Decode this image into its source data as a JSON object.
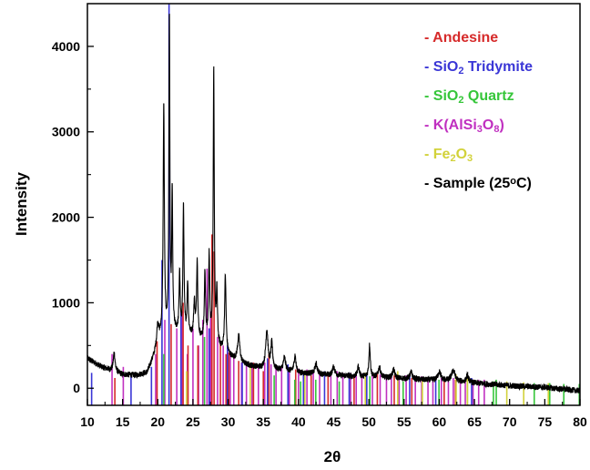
{
  "chart_data": {
    "type": "line",
    "title": "",
    "xlabel": "2θ",
    "ylabel": "Intensity",
    "xlim": [
      10,
      80
    ],
    "ylim": [
      -200,
      4500
    ],
    "x_ticks": [
      "10",
      "15",
      "20",
      "25",
      "30",
      "35",
      "40",
      "45",
      "50",
      "55",
      "60",
      "65",
      "70",
      "75",
      "80"
    ],
    "y_ticks": [
      "0",
      "1000",
      "2000",
      "3000",
      "4000"
    ],
    "grid": false,
    "legend_position": "top-right",
    "legend": [
      {
        "key": "andesine",
        "color": "#d62a2a",
        "parts": [
          {
            "t": "- Andesine",
            "s": "n"
          }
        ]
      },
      {
        "key": "tridymite",
        "color": "#3a36d6",
        "parts": [
          {
            "t": "- SiO",
            "s": "n"
          },
          {
            "t": "2",
            "s": "sub"
          },
          {
            "t": " Tridymite",
            "s": "n"
          }
        ]
      },
      {
        "key": "quartz",
        "color": "#36c63a",
        "parts": [
          {
            "t": "- SiO",
            "s": "n"
          },
          {
            "t": "2",
            "s": "sub"
          },
          {
            "t": " Quartz",
            "s": "n"
          }
        ]
      },
      {
        "key": "kalsi",
        "color": "#c030c0",
        "parts": [
          {
            "t": "- K(AlSi",
            "s": "n"
          },
          {
            "t": "3",
            "s": "sub"
          },
          {
            "t": "O",
            "s": "n"
          },
          {
            "t": "8",
            "s": "sub"
          },
          {
            "t": ")",
            "s": "n"
          }
        ]
      },
      {
        "key": "fe2o3",
        "color": "#d2d23a",
        "parts": [
          {
            "t": "- Fe",
            "s": "n"
          },
          {
            "t": "2",
            "s": "sub"
          },
          {
            "t": "O",
            "s": "n"
          },
          {
            "t": "3",
            "s": "sub"
          }
        ]
      },
      {
        "key": "sample",
        "color": "#000000",
        "parts": [
          {
            "t": "- Sample (25",
            "s": "n"
          },
          {
            "t": "o",
            "s": "sup"
          },
          {
            "t": "C)",
            "s": "n"
          }
        ]
      }
    ],
    "sample_series": {
      "name": "Sample (25°C)",
      "color": "#000000",
      "baseline": [
        [
          10,
          350
        ],
        [
          12,
          250
        ],
        [
          15,
          160
        ],
        [
          17,
          150
        ],
        [
          18.5,
          180
        ],
        [
          19.5,
          380
        ],
        [
          20.5,
          580
        ],
        [
          22,
          650
        ],
        [
          24,
          620
        ],
        [
          26,
          560
        ],
        [
          28,
          500
        ],
        [
          30,
          380
        ],
        [
          32,
          280
        ],
        [
          35,
          230
        ],
        [
          40,
          180
        ],
        [
          45,
          150
        ],
        [
          50,
          130
        ],
        [
          55,
          110
        ],
        [
          60,
          90
        ],
        [
          65,
          60
        ],
        [
          70,
          30
        ],
        [
          75,
          10
        ],
        [
          80,
          -30
        ]
      ],
      "peaks": [
        [
          13.8,
          220,
          0.15
        ],
        [
          20.0,
          250,
          0.18
        ],
        [
          20.85,
          2700,
          0.1
        ],
        [
          21.65,
          3700,
          0.08
        ],
        [
          22.05,
          1600,
          0.08
        ],
        [
          23.1,
          700,
          0.09
        ],
        [
          23.65,
          1500,
          0.09
        ],
        [
          24.25,
          600,
          0.1
        ],
        [
          25.2,
          400,
          0.12
        ],
        [
          25.6,
          900,
          0.1
        ],
        [
          26.7,
          800,
          0.1
        ],
        [
          27.3,
          1000,
          0.1
        ],
        [
          27.95,
          3200,
          0.09
        ],
        [
          28.4,
          600,
          0.1
        ],
        [
          29.6,
          900,
          0.12
        ],
        [
          31.5,
          300,
          0.2
        ],
        [
          35.5,
          450,
          0.2
        ],
        [
          36.2,
          300,
          0.15
        ],
        [
          38.0,
          150,
          0.2
        ],
        [
          39.5,
          200,
          0.15
        ],
        [
          42.5,
          120,
          0.2
        ],
        [
          45.0,
          100,
          0.2
        ],
        [
          48.5,
          120,
          0.15
        ],
        [
          50.1,
          380,
          0.12
        ],
        [
          51.5,
          120,
          0.2
        ],
        [
          53.5,
          100,
          0.2
        ],
        [
          56.0,
          80,
          0.2
        ],
        [
          60.0,
          100,
          0.25
        ],
        [
          62.0,
          130,
          0.3
        ],
        [
          64.0,
          80,
          0.2
        ]
      ],
      "noise": 35
    },
    "reference_series": {
      "andesine": {
        "color": "#d62a2a",
        "lines": [
          [
            13.9,
            120
          ],
          [
            19.9,
            550
          ],
          [
            21.9,
            750
          ],
          [
            23.6,
            1000
          ],
          [
            24.3,
            500
          ],
          [
            25.7,
            500
          ],
          [
            27.7,
            1800
          ],
          [
            28.0,
            1600
          ],
          [
            28.9,
            550
          ],
          [
            29.7,
            400
          ],
          [
            30.1,
            420
          ],
          [
            31.5,
            320
          ],
          [
            33.6,
            300
          ],
          [
            35.0,
            200
          ],
          [
            35.8,
            400
          ],
          [
            39.6,
            220
          ],
          [
            41.8,
            150
          ],
          [
            44.2,
            150
          ],
          [
            47.9,
            150
          ],
          [
            49.5,
            150
          ],
          [
            51.2,
            180
          ],
          [
            53.6,
            150
          ],
          [
            56.1,
            120
          ],
          [
            60.7,
            100
          ],
          [
            62.3,
            100
          ]
        ]
      },
      "tridymite": {
        "color": "#3a36d6",
        "lines": [
          [
            10.6,
            180
          ],
          [
            16.2,
            150
          ],
          [
            19.1,
            250
          ],
          [
            20.6,
            1500
          ],
          [
            21.6,
            4550
          ],
          [
            23.3,
            900
          ],
          [
            27.3,
            700
          ],
          [
            29.9,
            500
          ],
          [
            32.0,
            300
          ],
          [
            35.6,
            350
          ],
          [
            38.5,
            280
          ],
          [
            40.7,
            200
          ],
          [
            43.7,
            200
          ],
          [
            47.2,
            180
          ],
          [
            49.7,
            180
          ],
          [
            55.8,
            150
          ],
          [
            59.5,
            140
          ],
          [
            64.6,
            120
          ]
        ]
      },
      "quartz": {
        "color": "#36c63a",
        "lines": [
          [
            20.86,
            400
          ],
          [
            26.64,
            600
          ],
          [
            36.54,
            150
          ],
          [
            39.47,
            100
          ],
          [
            40.3,
            80
          ],
          [
            42.45,
            100
          ],
          [
            45.79,
            80
          ],
          [
            50.14,
            140
          ],
          [
            54.87,
            80
          ],
          [
            59.96,
            100
          ],
          [
            64.0,
            80
          ],
          [
            67.7,
            80
          ],
          [
            68.1,
            100
          ],
          [
            73.5,
            60
          ],
          [
            75.7,
            60
          ],
          [
            77.7,
            50
          ],
          [
            79.9,
            50
          ]
        ]
      },
      "kalsi": {
        "color": "#c030c0",
        "lines": [
          [
            13.5,
            400
          ],
          [
            15.1,
            250
          ],
          [
            19.7,
            400
          ],
          [
            21.0,
            800
          ],
          [
            22.7,
            700
          ],
          [
            23.5,
            900
          ],
          [
            24.2,
            400
          ],
          [
            25.0,
            700
          ],
          [
            25.8,
            500
          ],
          [
            26.4,
            800
          ],
          [
            27.0,
            1400
          ],
          [
            27.5,
            900
          ],
          [
            28.5,
            600
          ],
          [
            29.3,
            500
          ],
          [
            30.3,
            400
          ],
          [
            30.8,
            350
          ],
          [
            31.9,
            300
          ],
          [
            32.6,
            260
          ],
          [
            33.4,
            300
          ],
          [
            34.3,
            250
          ],
          [
            35.2,
            300
          ],
          [
            36.1,
            280
          ],
          [
            36.8,
            260
          ],
          [
            37.6,
            250
          ],
          [
            38.7,
            250
          ],
          [
            40.0,
            230
          ],
          [
            41.2,
            220
          ],
          [
            42.1,
            200
          ],
          [
            43.0,
            200
          ],
          [
            44.6,
            200
          ],
          [
            45.5,
            200
          ],
          [
            46.3,
            180
          ],
          [
            47.4,
            180
          ],
          [
            48.2,
            180
          ],
          [
            49.0,
            170
          ],
          [
            50.5,
            170
          ],
          [
            51.6,
            160
          ],
          [
            52.5,
            160
          ],
          [
            53.2,
            150
          ],
          [
            54.3,
            150
          ],
          [
            55.3,
            150
          ],
          [
            56.6,
            140
          ],
          [
            57.5,
            140
          ],
          [
            58.4,
            130
          ],
          [
            59.1,
            130
          ],
          [
            60.3,
            120
          ],
          [
            61.3,
            120
          ],
          [
            62.0,
            120
          ],
          [
            63.0,
            110
          ],
          [
            63.7,
            110
          ],
          [
            64.8,
            100
          ],
          [
            65.6,
            100
          ],
          [
            66.4,
            100
          ]
        ]
      },
      "fe2o3": {
        "color": "#d2d23a",
        "lines": [
          [
            24.1,
            200
          ],
          [
            33.15,
            300
          ],
          [
            35.6,
            220
          ],
          [
            40.9,
            150
          ],
          [
            49.5,
            180
          ],
          [
            54.1,
            200
          ],
          [
            57.6,
            120
          ],
          [
            62.4,
            160
          ],
          [
            64.0,
            150
          ],
          [
            69.6,
            80
          ],
          [
            72.0,
            70
          ],
          [
            75.5,
            60
          ]
        ]
      }
    }
  }
}
